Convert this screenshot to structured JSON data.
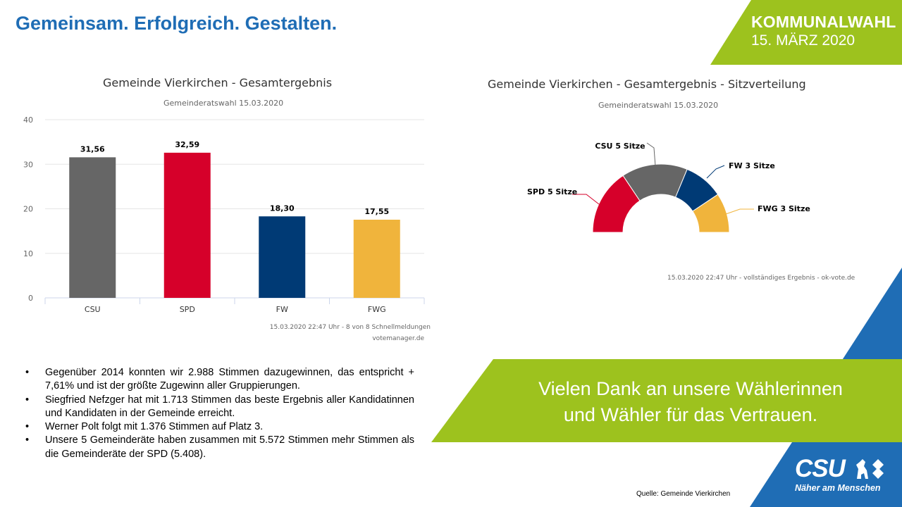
{
  "header": {
    "headline": "Gemeinsam. Erfolgreich. Gestalten.",
    "badge_title": "KOMMUNALWAHL",
    "badge_date": "15. MÄRZ 2020"
  },
  "colors": {
    "csu_blue": "#1f6db5",
    "lime": "#9dc21e",
    "csu": "#666666",
    "spd": "#d6002a",
    "fw": "#003a75",
    "fwg": "#f0b43c"
  },
  "charts": {
    "bar": {
      "title": "Gemeinde Vierkirchen - Gesamtergebnis",
      "subtitle": "Gemeinderatswahl 15.03.2020",
      "credit_line1": "15.03.2020 22:47 Uhr - 8 von 8 Schnellmeldungen",
      "credit_line2": "votemanager.de"
    },
    "seats": {
      "title": "Gemeinde Vierkirchen - Gesamtergebnis - Sitzverteilung",
      "subtitle": "Gemeinderatswahl 15.03.2020",
      "credit": "15.03.2020 22:47 Uhr - vollständiges Ergebnis - ok-vote.de"
    }
  },
  "chart_data": [
    {
      "type": "bar",
      "title": "Gemeinde Vierkirchen - Gesamtergebnis",
      "subtitle": "Gemeinderatswahl 15.03.2020",
      "categories": [
        "CSU",
        "SPD",
        "FW",
        "FWG"
      ],
      "values": [
        31.56,
        32.59,
        18.3,
        17.55
      ],
      "value_labels": [
        "31,56",
        "32,59",
        "18,30",
        "17,55"
      ],
      "colors": [
        "#666666",
        "#d6002a",
        "#003a75",
        "#f0b43c"
      ],
      "y_ticks": [
        "0",
        "10",
        "20",
        "30",
        "40"
      ],
      "ylim": [
        0,
        40
      ],
      "grid": true,
      "xlabel": "",
      "ylabel": ""
    },
    {
      "type": "pie",
      "variant": "semi-donut",
      "title": "Gemeinde Vierkirchen - Gesamtergebnis - Sitzverteilung",
      "subtitle": "Gemeinderatswahl 15.03.2020",
      "slices": [
        {
          "name": "SPD",
          "value": 5,
          "label": "SPD 5 Sitze",
          "color": "#d6002a"
        },
        {
          "name": "CSU",
          "value": 5,
          "label": "CSU 5 Sitze",
          "color": "#666666"
        },
        {
          "name": "FW",
          "value": 3,
          "label": "FW 3 Sitze",
          "color": "#003a75"
        },
        {
          "name": "FWG",
          "value": 3,
          "label": "FWG 3 Sitze",
          "color": "#f0b43c"
        }
      ]
    }
  ],
  "bullets": [
    "Gegenüber 2014 konnten wir 2.988 Stimmen dazugewinnen, das entspricht + 7,61% und ist der größte Zugewinn aller Gruppierungen.",
    "Siegfried Nefzger hat mit 1.713 Stimmen das beste Ergebnis aller Kandidatinnen und Kandidaten in der Gemeinde erreicht.",
    "Werner Polt folgt mit 1.376 Stimmen auf Platz 3.",
    "Unsere 5 Gemeinderäte haben zusammen mit 5.572 Stimmen mehr Stimmen als die Gemeinderäte der SPD (5.408)."
  ],
  "bullet_marker": "•",
  "thanks": {
    "line1": "Vielen Dank an unsere Wählerinnen",
    "line2": "und Wähler für das Vertrauen."
  },
  "source": "Quelle: Gemeinde Vierkirchen",
  "logo": {
    "name": "CSU",
    "slogan": "Näher am Menschen",
    "icons": [
      "lion-icon",
      "diamond-icon"
    ]
  }
}
